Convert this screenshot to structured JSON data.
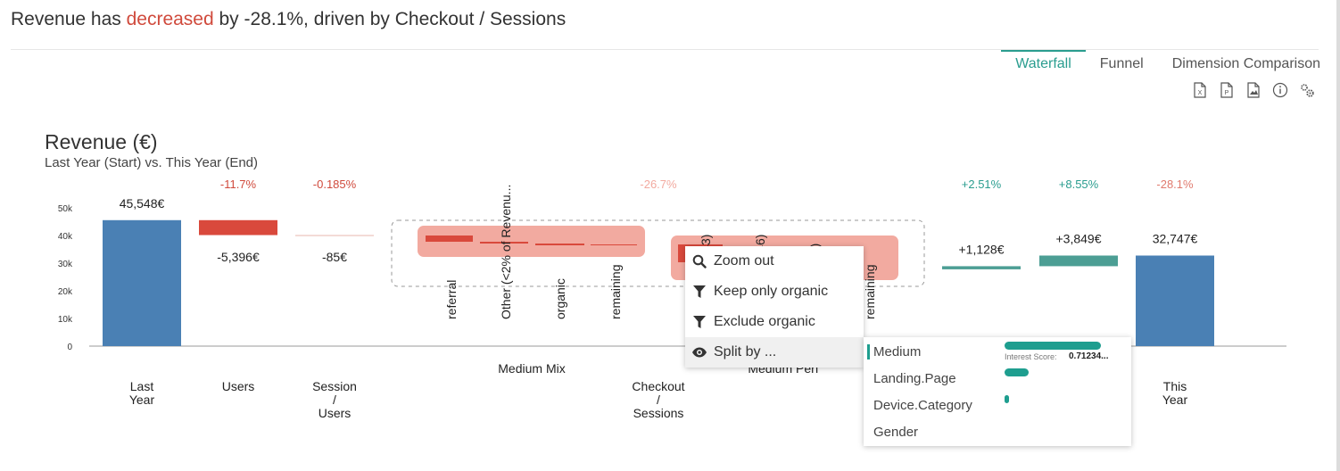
{
  "headline": {
    "prefix": "Revenue has ",
    "highlight": "decreased",
    "suffix": " by -28.1%, driven by Checkout / Sessions"
  },
  "tabs": [
    {
      "label": "Waterfall",
      "active": true
    },
    {
      "label": "Funnel",
      "active": false
    },
    {
      "label": "Dimension Comparison",
      "active": false
    }
  ],
  "toolbar": {
    "icons": [
      "excel-export-icon",
      "powerpoint-export-icon",
      "image-export-icon",
      "info-icon",
      "settings-icon"
    ]
  },
  "colors": {
    "blue": "#4a80b4",
    "red": "#d9493c",
    "teal": "#4c9e94",
    "neg_text": "#d04a3c",
    "pos_text": "#2a9d8f",
    "pink": "#f2aaa0"
  },
  "chart_data": {
    "type": "bar",
    "title": "Revenue (€)",
    "subtitle": "Last Year (Start) vs. This Year (End)",
    "ylim": [
      0,
      50000
    ],
    "yticks": [
      "0",
      "10k",
      "20k",
      "30k",
      "40k",
      "50k"
    ],
    "steps": [
      {
        "label": "Last\nYear",
        "pct": "",
        "value_label": "45,548€",
        "start": 0,
        "end": 45548,
        "kind": "total"
      },
      {
        "label": "Users",
        "pct": "-11.7%",
        "value_label": "-5,396€",
        "start": 45548,
        "end": 40152,
        "kind": "neg"
      },
      {
        "label": "Session\n/\nUsers",
        "pct": "-0.185%",
        "value_label": "-85€",
        "start": 40152,
        "end": 40067,
        "kind": "neg"
      },
      {
        "label": "Checkout\n/\nSessions",
        "pct": "-26.7%",
        "value_label": "",
        "start": 40067,
        "end": 27770,
        "kind": "group"
      },
      {
        "label": "",
        "pct": "+2.51%",
        "value_label": "+1,128€",
        "start": 27770,
        "end": 28898,
        "kind": "pos"
      },
      {
        "label": "",
        "pct": "+8.55%",
        "value_label": "+3,849€",
        "start": 28898,
        "end": 32747,
        "kind": "pos"
      },
      {
        "label": "This\nYear",
        "pct": "-28.1%",
        "value_label": "32,747€",
        "start": 0,
        "end": 32747,
        "kind": "total"
      }
    ],
    "groups": [
      {
        "label": "Medium Mix",
        "items": [
          "referral",
          "Other (<2% of Revenu...",
          "organic",
          "remaining"
        ]
      },
      {
        "label": "Medium Perf",
        "items": [
          "(43)",
          "(46)",
          ")",
          "remaining"
        ]
      }
    ]
  },
  "context_menu": {
    "items": [
      {
        "label": "Zoom out",
        "icon": "search-icon"
      },
      {
        "label": "Keep only organic",
        "icon": "filter-icon"
      },
      {
        "label": "Exclude organic",
        "icon": "filter-icon"
      },
      {
        "label": "Split by ...",
        "icon": "eye-icon"
      }
    ]
  },
  "split_submenu": {
    "items": [
      {
        "label": "Medium",
        "score": 1.0
      },
      {
        "label": "Landing.Page",
        "score": 0.25
      },
      {
        "label": "Device.Category",
        "score": 0.05
      },
      {
        "label": "Gender",
        "score": 0
      }
    ],
    "score_label": "Interest Score:",
    "score_value": "0.71234..."
  }
}
